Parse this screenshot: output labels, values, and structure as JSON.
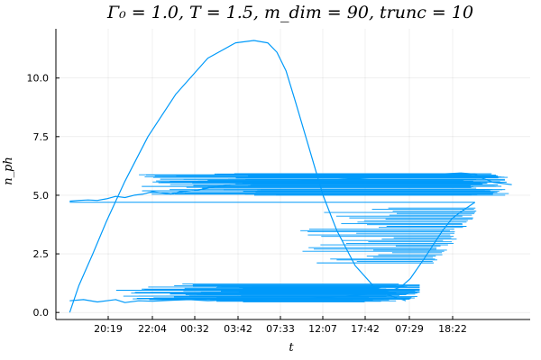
{
  "chart_data": {
    "type": "line",
    "title": "Γ₀ = 1.0, T = 1.5, m_dim = 90, trunc = 10",
    "xlabel": "t",
    "ylabel": "n_ph",
    "grid": true,
    "legend": "none",
    "color": "#009AFA",
    "x_tick_labels": [
      "20:19",
      "22:04",
      "00:32",
      "03:42",
      "07:33",
      "12:07",
      "17:42",
      "07:29",
      "18:22"
    ],
    "y_ticks": [
      0.0,
      2.5,
      5.0,
      7.5,
      10.0
    ],
    "y_tick_labels": [
      "0.0",
      "2.5",
      "5.0",
      "7.5",
      "10.0"
    ],
    "ylim": [
      -0.3,
      12.1
    ],
    "series": [
      {
        "x": [
          0,
          2,
          5,
          8,
          12,
          17,
          23,
          30,
          36,
          40,
          43,
          45,
          47,
          49,
          52,
          55,
          58,
          62,
          67,
          73
        ],
        "y": [
          0.0,
          1.15,
          2.5,
          3.9,
          5.6,
          7.5,
          9.3,
          10.85,
          11.5,
          11.6,
          11.5,
          11.1,
          10.3,
          9.0,
          7.0,
          5.0,
          3.5,
          2.0,
          0.9,
          0.5
        ]
      },
      {
        "x": [
          0,
          3,
          6,
          10,
          12,
          15,
          18,
          22,
          26,
          30,
          35,
          40,
          45,
          50,
          55,
          60,
          66,
          70,
          72,
          74,
          77,
          79,
          81,
          83,
          85,
          88
        ],
        "y": [
          0.5,
          0.55,
          0.45,
          0.55,
          0.42,
          0.5,
          0.48,
          0.52,
          0.55,
          0.5,
          0.53,
          0.55,
          0.57,
          0.6,
          0.65,
          0.7,
          0.8,
          0.95,
          1.1,
          1.45,
          2.3,
          2.9,
          3.5,
          4.0,
          4.3,
          4.7
        ]
      },
      {
        "x": [
          0,
          2,
          4,
          6,
          8,
          10,
          12,
          14,
          16,
          18,
          20,
          22,
          24,
          27,
          30,
          35,
          40,
          45,
          50,
          55,
          60,
          65,
          70,
          75,
          80,
          85,
          88,
          89,
          90,
          92,
          94,
          96
        ],
        "y": [
          4.75,
          4.78,
          4.8,
          4.78,
          4.85,
          4.95,
          4.9,
          5.0,
          5.05,
          5.15,
          5.1,
          5.05,
          5.15,
          5.2,
          5.3,
          5.45,
          5.5,
          5.55,
          5.6,
          5.65,
          5.7,
          5.75,
          5.8,
          5.85,
          5.9,
          5.95,
          5.9,
          5.8,
          5.7,
          5.55,
          5.5,
          5.45
        ]
      }
    ]
  }
}
